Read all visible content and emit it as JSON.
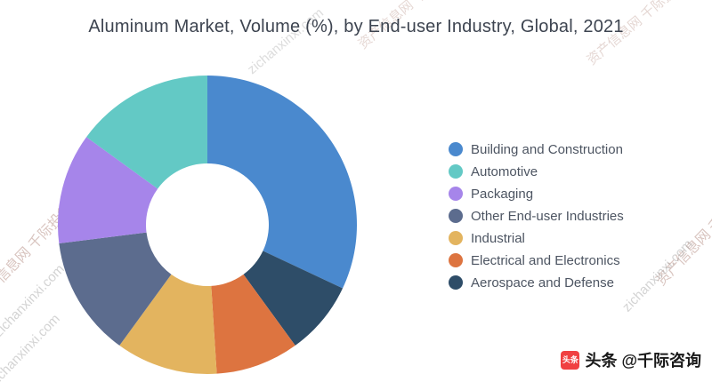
{
  "title": "Aluminum Market, Volume (%), by End-user Industry, Global, 2021",
  "chart_data": {
    "type": "pie",
    "subtype": "donut",
    "title": "Aluminum Market, Volume (%), by End-user Industry, Global, 2021",
    "unit": "%",
    "legend_position": "right",
    "start_angle": "top",
    "inner_radius_ratio": 0.41,
    "categories": [
      "Building and Construction",
      "Automotive",
      "Packaging",
      "Other End-user Industries",
      "Industrial",
      "Electrical and Electronics",
      "Aerospace and Defense"
    ],
    "values": [
      32,
      15,
      12,
      13,
      11,
      9,
      8
    ],
    "colors": [
      "#4a89ce",
      "#63c9c5",
      "#a685ea",
      "#5c6c8e",
      "#e3b45f",
      "#dd7440",
      "#2e4d68"
    ],
    "clockwise_order": [
      0,
      6,
      5,
      4,
      3,
      2,
      1
    ]
  },
  "watermarks": {
    "cn": "资产信息网 千际投行",
    "en": "zichanxinxi.com"
  },
  "footer": {
    "icon_label": "头条",
    "text": "头条 @千际咨询"
  }
}
